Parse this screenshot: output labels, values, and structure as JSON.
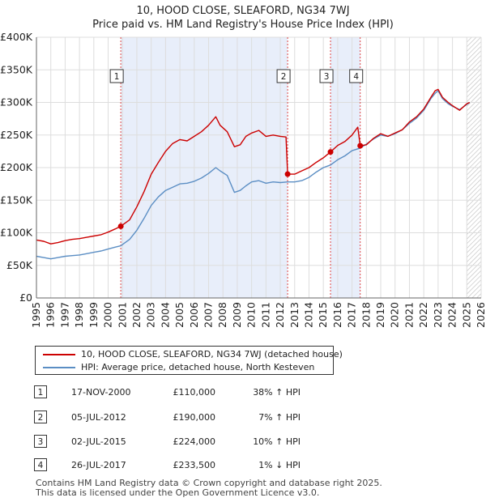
{
  "chart_data": {
    "type": "line",
    "title": "10, HOOD CLOSE, SLEAFORD, NG34 7WJ",
    "subtitle": "Price paid vs. HM Land Registry's House Price Index (HPI)",
    "xlabel": "",
    "ylabel": "",
    "xlim": [
      1995,
      2026
    ],
    "ylim": [
      0,
      400000
    ],
    "x_ticks": [
      1995,
      1996,
      1997,
      1998,
      1999,
      2000,
      2001,
      2002,
      2003,
      2004,
      2005,
      2006,
      2007,
      2008,
      2009,
      2010,
      2011,
      2012,
      2013,
      2014,
      2015,
      2016,
      2017,
      2018,
      2019,
      2020,
      2021,
      2022,
      2023,
      2024,
      2025,
      2026
    ],
    "y_ticks": [
      {
        "value": 0,
        "label": "£0"
      },
      {
        "value": 50000,
        "label": "£50K"
      },
      {
        "value": 100000,
        "label": "£100K"
      },
      {
        "value": 150000,
        "label": "£150K"
      },
      {
        "value": 200000,
        "label": "£200K"
      },
      {
        "value": 250000,
        "label": "£250K"
      },
      {
        "value": 300000,
        "label": "£300K"
      },
      {
        "value": 350000,
        "label": "£350K"
      },
      {
        "value": 400000,
        "label": "£400K"
      }
    ],
    "grid": true,
    "shaded_periods": [
      [
        2000.88,
        2012.51
      ],
      [
        2015.5,
        2017.57
      ]
    ],
    "forecast_from": 2025.0,
    "series": [
      {
        "name": "10, HOOD CLOSE, SLEAFORD, NG34 7WJ (detached house)",
        "color": "#cc0000",
        "points": [
          [
            1995.0,
            89000
          ],
          [
            1995.5,
            87000
          ],
          [
            1996.0,
            83000
          ],
          [
            1996.5,
            85000
          ],
          [
            1997.0,
            88000
          ],
          [
            1997.5,
            90000
          ],
          [
            1998.0,
            91000
          ],
          [
            1998.5,
            93000
          ],
          [
            1999.0,
            95000
          ],
          [
            1999.5,
            97000
          ],
          [
            2000.0,
            101000
          ],
          [
            2000.5,
            106000
          ],
          [
            2000.88,
            110000
          ],
          [
            2001.5,
            120000
          ],
          [
            2002.0,
            140000
          ],
          [
            2002.5,
            163000
          ],
          [
            2003.0,
            190000
          ],
          [
            2003.5,
            208000
          ],
          [
            2004.0,
            225000
          ],
          [
            2004.5,
            237000
          ],
          [
            2005.0,
            243000
          ],
          [
            2005.5,
            241000
          ],
          [
            2006.0,
            248000
          ],
          [
            2006.5,
            255000
          ],
          [
            2007.0,
            265000
          ],
          [
            2007.5,
            278000
          ],
          [
            2007.8,
            265000
          ],
          [
            2008.3,
            255000
          ],
          [
            2008.8,
            232000
          ],
          [
            2009.2,
            235000
          ],
          [
            2009.6,
            248000
          ],
          [
            2010.0,
            253000
          ],
          [
            2010.5,
            257000
          ],
          [
            2011.0,
            248000
          ],
          [
            2011.5,
            250000
          ],
          [
            2012.0,
            248000
          ],
          [
            2012.4,
            247000
          ],
          [
            2012.51,
            190000
          ],
          [
            2013.0,
            190000
          ],
          [
            2013.5,
            195000
          ],
          [
            2014.0,
            200000
          ],
          [
            2014.5,
            208000
          ],
          [
            2015.0,
            215000
          ],
          [
            2015.5,
            224000
          ],
          [
            2016.0,
            234000
          ],
          [
            2016.5,
            240000
          ],
          [
            2017.0,
            250000
          ],
          [
            2017.4,
            262000
          ],
          [
            2017.57,
            233500
          ],
          [
            2018.0,
            235000
          ],
          [
            2018.5,
            245000
          ],
          [
            2019.0,
            252000
          ],
          [
            2019.5,
            248000
          ],
          [
            2020.0,
            253000
          ],
          [
            2020.5,
            258000
          ],
          [
            2021.0,
            270000
          ],
          [
            2021.5,
            278000
          ],
          [
            2022.0,
            290000
          ],
          [
            2022.5,
            308000
          ],
          [
            2022.8,
            318000
          ],
          [
            2023.0,
            320000
          ],
          [
            2023.3,
            308000
          ],
          [
            2023.7,
            300000
          ],
          [
            2024.0,
            295000
          ],
          [
            2024.5,
            288000
          ],
          [
            2025.0,
            298000
          ],
          [
            2025.2,
            300000
          ]
        ]
      },
      {
        "name": "HPI: Average price, detached house, North Kesteven",
        "color": "#5b8ec4",
        "points": [
          [
            1995.0,
            64000
          ],
          [
            1995.5,
            62000
          ],
          [
            1996.0,
            60000
          ],
          [
            1996.5,
            62000
          ],
          [
            1997.0,
            64000
          ],
          [
            1997.5,
            65000
          ],
          [
            1998.0,
            66000
          ],
          [
            1998.5,
            68000
          ],
          [
            1999.0,
            70000
          ],
          [
            1999.5,
            72000
          ],
          [
            2000.0,
            75000
          ],
          [
            2000.5,
            78000
          ],
          [
            2000.88,
            80000
          ],
          [
            2001.5,
            90000
          ],
          [
            2002.0,
            104000
          ],
          [
            2002.5,
            122000
          ],
          [
            2003.0,
            142000
          ],
          [
            2003.5,
            155000
          ],
          [
            2004.0,
            165000
          ],
          [
            2004.5,
            170000
          ],
          [
            2005.0,
            175000
          ],
          [
            2005.5,
            176000
          ],
          [
            2006.0,
            179000
          ],
          [
            2006.5,
            184000
          ],
          [
            2007.0,
            191000
          ],
          [
            2007.5,
            200000
          ],
          [
            2007.8,
            195000
          ],
          [
            2008.3,
            188000
          ],
          [
            2008.8,
            162000
          ],
          [
            2009.2,
            165000
          ],
          [
            2009.6,
            172000
          ],
          [
            2010.0,
            178000
          ],
          [
            2010.5,
            180000
          ],
          [
            2011.0,
            176000
          ],
          [
            2011.5,
            178000
          ],
          [
            2012.0,
            177000
          ],
          [
            2012.51,
            178000
          ],
          [
            2013.0,
            178000
          ],
          [
            2013.5,
            180000
          ],
          [
            2014.0,
            185000
          ],
          [
            2014.5,
            193000
          ],
          [
            2015.0,
            200000
          ],
          [
            2015.5,
            204000
          ],
          [
            2016.0,
            212000
          ],
          [
            2016.5,
            218000
          ],
          [
            2017.0,
            226000
          ],
          [
            2017.57,
            230000
          ],
          [
            2018.0,
            236000
          ],
          [
            2018.5,
            244000
          ],
          [
            2019.0,
            250000
          ],
          [
            2019.5,
            248000
          ],
          [
            2020.0,
            252000
          ],
          [
            2020.5,
            258000
          ],
          [
            2021.0,
            268000
          ],
          [
            2021.5,
            276000
          ],
          [
            2022.0,
            288000
          ],
          [
            2022.5,
            306000
          ],
          [
            2022.8,
            314000
          ],
          [
            2023.0,
            318000
          ],
          [
            2023.3,
            306000
          ],
          [
            2023.7,
            298000
          ],
          [
            2024.0,
            294000
          ],
          [
            2024.5,
            289000
          ],
          [
            2025.0,
            297000
          ],
          [
            2025.2,
            300000
          ]
        ]
      }
    ],
    "sales": [
      {
        "label": "1",
        "x": 2000.88,
        "price": 110000
      },
      {
        "label": "2",
        "x": 2012.51,
        "price": 190000
      },
      {
        "label": "3",
        "x": 2015.5,
        "price": 224000
      },
      {
        "label": "4",
        "x": 2017.57,
        "price": 233500
      }
    ]
  },
  "legend": {
    "property_label": "10, HOOD CLOSE, SLEAFORD, NG34 7WJ (detached house)",
    "hpi_label": "HPI: Average price, detached house, North Kesteven"
  },
  "transactions": [
    {
      "num": "1",
      "date": "17-NOV-2000",
      "price": "£110,000",
      "hpi": "38% ↑ HPI"
    },
    {
      "num": "2",
      "date": "05-JUL-2012",
      "price": "£190,000",
      "hpi": "7% ↑ HPI"
    },
    {
      "num": "3",
      "date": "02-JUL-2015",
      "price": "£224,000",
      "hpi": "10% ↑ HPI"
    },
    {
      "num": "4",
      "date": "26-JUL-2017",
      "price": "£233,500",
      "hpi": "1% ↓ HPI"
    }
  ],
  "footer": {
    "line1": "Contains HM Land Registry data © Crown copyright and database right 2025.",
    "line2": "This data is licensed under the Open Government Licence v3.0."
  },
  "colors": {
    "property": "#cc0000",
    "hpi": "#5b8ec4",
    "shade": "#e8eefa",
    "grid": "#dddddd"
  }
}
